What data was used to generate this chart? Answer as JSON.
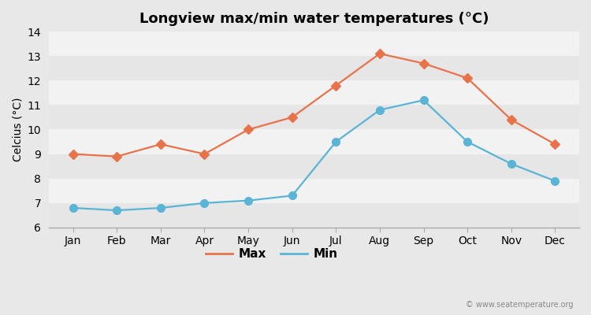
{
  "title": "Longview max/min water temperatures (°C)",
  "ylabel": "Celcius (°C)",
  "months": [
    "Jan",
    "Feb",
    "Mar",
    "Apr",
    "May",
    "Jun",
    "Jul",
    "Aug",
    "Sep",
    "Oct",
    "Nov",
    "Dec"
  ],
  "max_values": [
    9.0,
    8.9,
    9.4,
    9.0,
    10.0,
    10.5,
    11.8,
    13.1,
    12.7,
    12.1,
    10.4,
    9.4
  ],
  "min_values": [
    6.8,
    6.7,
    6.8,
    7.0,
    7.1,
    7.3,
    9.5,
    10.8,
    11.2,
    9.5,
    8.6,
    7.9
  ],
  "max_color": "#e8724a",
  "min_color": "#5ab4d6",
  "max_marker": "D",
  "min_marker": "o",
  "marker_size_max": 6,
  "marker_size_min": 7,
  "line_width": 1.6,
  "ylim": [
    6,
    14
  ],
  "yticks": [
    6,
    7,
    8,
    9,
    10,
    11,
    12,
    13,
    14
  ],
  "fig_bg_color": "#e8e8e8",
  "plot_bg_color": "#f2f2f2",
  "band_color_light": "#f2f2f2",
  "band_color_dark": "#e6e6e6",
  "spine_color": "#aaaaaa",
  "watermark": "© www.seatemperature.org",
  "legend_labels": [
    "Max",
    "Min"
  ],
  "title_fontsize": 13,
  "label_fontsize": 10,
  "tick_fontsize": 10
}
